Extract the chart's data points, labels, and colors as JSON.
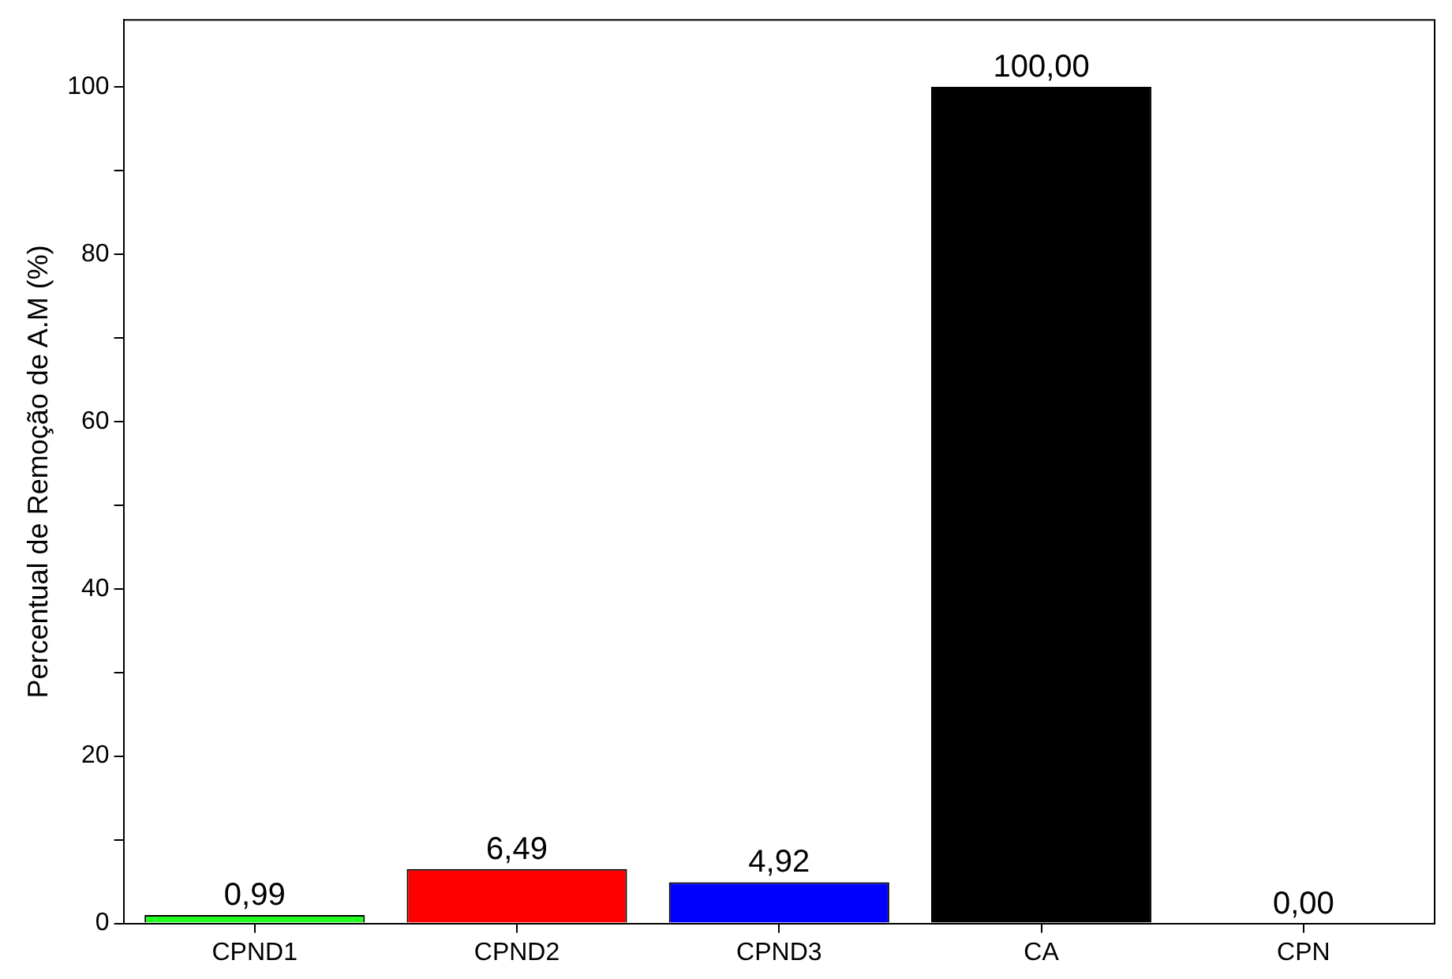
{
  "chart_data": {
    "type": "bar",
    "ylabel": "Percentual de Remoção de A.M (%)",
    "categories": [
      "CPND1",
      "CPND2",
      "CPND3",
      "CA",
      "CPN"
    ],
    "values": [
      0.99,
      6.49,
      4.92,
      100,
      0
    ],
    "colors": [
      "#22ff22",
      "#ff0000",
      "#0000ff",
      "#000000",
      "#000000"
    ],
    "value_labels": [
      "0,99",
      "6,49",
      "4,92",
      "100,00",
      "0,00"
    ],
    "ylim": [
      0,
      108
    ],
    "yticks": [
      0,
      {
        "value": 10,
        "label": null
      },
      20,
      {
        "value": 30,
        "label": null
      },
      40,
      {
        "value": 50,
        "label": null
      },
      60,
      {
        "value": 70,
        "label": null
      },
      80,
      {
        "value": 90,
        "label": null
      },
      100
    ],
    "grid": false,
    "legend": false
  }
}
